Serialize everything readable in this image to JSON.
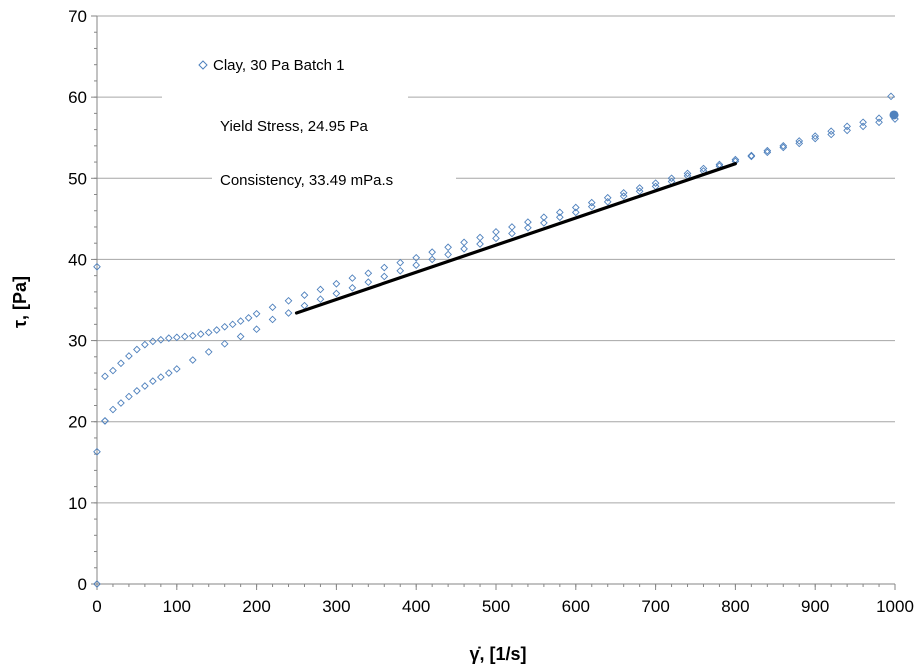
{
  "chart_data": {
    "type": "scatter",
    "xlabel": "γ̇, [1/s]",
    "ylabel": "τ, [Pa]",
    "xlim": [
      0,
      1000
    ],
    "ylim": [
      0,
      70
    ],
    "x_ticks": [
      "0",
      "100",
      "200",
      "300",
      "400",
      "500",
      "600",
      "700",
      "800",
      "900",
      "1000"
    ],
    "y_ticks": [
      "0",
      "10",
      "20",
      "30",
      "40",
      "50",
      "60",
      "70"
    ],
    "grid": "horizontal",
    "legend": {
      "placement": "top-left",
      "entries": [
        "Clay, 30 Pa Batch 1",
        "Yield Stress, 24.95 Pa",
        "Consistency, 33.49 mPa.s"
      ]
    },
    "series": [
      {
        "name": "Clay, 30 Pa Batch 1",
        "marker": "diamond",
        "color": "#4f81bd",
        "x": [
          0,
          0,
          0,
          10,
          10,
          20,
          30,
          40,
          50,
          60,
          70,
          80,
          90,
          100,
          110,
          120,
          130,
          140,
          150,
          160,
          170,
          180,
          190,
          200,
          220,
          240,
          260,
          280,
          300,
          320,
          340,
          360,
          380,
          400,
          420,
          440,
          460,
          480,
          500,
          520,
          540,
          560,
          580,
          600,
          620,
          640,
          660,
          680,
          700,
          720,
          740,
          760,
          780,
          800,
          820,
          840,
          860,
          880,
          900,
          920,
          940,
          960,
          980,
          1000,
          995,
          1000,
          980,
          960,
          940,
          920,
          900,
          880,
          860,
          840,
          820,
          800,
          780,
          760,
          740,
          720,
          700,
          680,
          660,
          640,
          620,
          600,
          580,
          560,
          540,
          520,
          500,
          480,
          460,
          440,
          420,
          400,
          380,
          360,
          340,
          320,
          300,
          280,
          260,
          240,
          220,
          200,
          180,
          160,
          140,
          120,
          100,
          90,
          80,
          70,
          60,
          50,
          40,
          30,
          20,
          10
        ],
        "y": [
          0,
          16.3,
          39.1,
          20.1,
          25.6,
          26.3,
          27.2,
          28.1,
          28.9,
          29.5,
          29.9,
          30.1,
          30.3,
          30.4,
          30.5,
          30.6,
          30.8,
          31.0,
          31.3,
          31.7,
          32.0,
          32.4,
          32.8,
          33.3,
          34.1,
          34.9,
          35.6,
          36.3,
          37.0,
          37.7,
          38.3,
          39.0,
          39.6,
          40.2,
          40.9,
          41.5,
          42.1,
          42.7,
          43.4,
          44.0,
          44.6,
          45.2,
          45.8,
          46.4,
          47.0,
          47.6,
          48.2,
          48.8,
          49.4,
          50.0,
          50.6,
          51.2,
          51.7,
          52.3,
          52.8,
          53.4,
          54.0,
          54.6,
          55.2,
          55.8,
          56.4,
          56.9,
          57.4,
          57.8,
          60.1,
          57.3,
          56.9,
          56.4,
          55.9,
          55.4,
          54.9,
          54.3,
          53.8,
          53.2,
          52.7,
          52.1,
          51.5,
          50.9,
          50.3,
          49.6,
          49.0,
          48.4,
          47.8,
          47.1,
          46.5,
          45.8,
          45.2,
          44.5,
          43.9,
          43.2,
          42.6,
          41.9,
          41.3,
          40.6,
          40.0,
          39.3,
          38.6,
          37.9,
          37.2,
          36.5,
          35.8,
          35.1,
          34.3,
          33.4,
          32.6,
          31.4,
          30.5,
          29.6,
          28.6,
          27.6,
          26.5,
          26.0,
          25.5,
          25.0,
          24.4,
          23.8,
          23.1,
          22.3,
          21.5,
          20.1
        ]
      },
      {
        "name": "Consistency, 33.49 mPa.s",
        "type": "line",
        "color": "#000000",
        "x": [
          250,
          800
        ],
        "y": [
          33.4,
          51.8
        ]
      }
    ]
  }
}
